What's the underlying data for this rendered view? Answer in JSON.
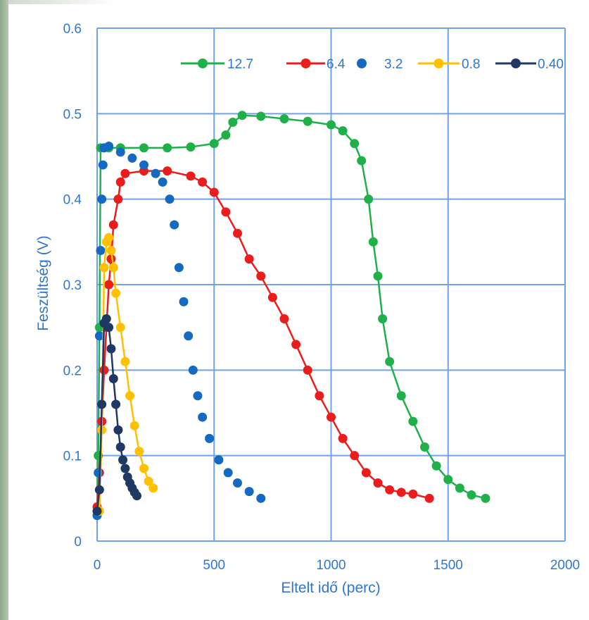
{
  "colors": {
    "grid": "#6fa3e8",
    "text": "#2e75d4"
  },
  "chart_data": {
    "type": "scatter",
    "title": "",
    "xlabel": "Eltelt idő (perc)",
    "ylabel": "Feszültség (V)",
    "xlim": [
      0,
      2000
    ],
    "ylim": [
      0,
      0.6
    ],
    "xticks": [
      0,
      500,
      1000,
      1500,
      2000
    ],
    "yticks": [
      0,
      0.1,
      0.2,
      0.3,
      0.4,
      0.5,
      0.6
    ],
    "xtick_labels": [
      "0",
      "500",
      "1000",
      "1500",
      "2000"
    ],
    "ytick_labels": [
      "0",
      "0.1",
      "0.2",
      "0.3",
      "0.4",
      "0.5",
      "0.6"
    ],
    "grid": true,
    "legend_position": "top-right",
    "series": [
      {
        "name": "12.7",
        "color": "#1fb04a",
        "line": true,
        "points": [
          [
            0,
            0.03
          ],
          [
            5,
            0.1
          ],
          [
            10,
            0.25
          ],
          [
            15,
            0.46
          ],
          [
            50,
            0.46
          ],
          [
            100,
            0.46
          ],
          [
            200,
            0.46
          ],
          [
            300,
            0.46
          ],
          [
            400,
            0.461
          ],
          [
            500,
            0.465
          ],
          [
            550,
            0.475
          ],
          [
            580,
            0.49
          ],
          [
            620,
            0.498
          ],
          [
            700,
            0.497
          ],
          [
            800,
            0.494
          ],
          [
            900,
            0.491
          ],
          [
            1000,
            0.487
          ],
          [
            1050,
            0.48
          ],
          [
            1100,
            0.465
          ],
          [
            1130,
            0.445
          ],
          [
            1160,
            0.4
          ],
          [
            1180,
            0.35
          ],
          [
            1200,
            0.31
          ],
          [
            1220,
            0.26
          ],
          [
            1250,
            0.21
          ],
          [
            1300,
            0.17
          ],
          [
            1350,
            0.14
          ],
          [
            1400,
            0.11
          ],
          [
            1450,
            0.088
          ],
          [
            1500,
            0.072
          ],
          [
            1550,
            0.062
          ],
          [
            1600,
            0.054
          ],
          [
            1660,
            0.05
          ]
        ]
      },
      {
        "name": "6.4",
        "color": "#ea1c1c",
        "line": true,
        "points": [
          [
            0,
            0.04
          ],
          [
            10,
            0.08
          ],
          [
            20,
            0.14
          ],
          [
            30,
            0.2
          ],
          [
            40,
            0.25
          ],
          [
            50,
            0.3
          ],
          [
            60,
            0.33
          ],
          [
            70,
            0.37
          ],
          [
            90,
            0.4
          ],
          [
            100,
            0.42
          ],
          [
            120,
            0.43
          ],
          [
            200,
            0.433
          ],
          [
            300,
            0.433
          ],
          [
            400,
            0.427
          ],
          [
            450,
            0.42
          ],
          [
            500,
            0.408
          ],
          [
            550,
            0.385
          ],
          [
            600,
            0.36
          ],
          [
            650,
            0.33
          ],
          [
            700,
            0.31
          ],
          [
            750,
            0.285
          ],
          [
            800,
            0.26
          ],
          [
            850,
            0.23
          ],
          [
            900,
            0.2
          ],
          [
            950,
            0.17
          ],
          [
            1000,
            0.145
          ],
          [
            1050,
            0.12
          ],
          [
            1100,
            0.1
          ],
          [
            1150,
            0.08
          ],
          [
            1200,
            0.068
          ],
          [
            1250,
            0.06
          ],
          [
            1300,
            0.057
          ],
          [
            1350,
            0.055
          ],
          [
            1420,
            0.05
          ]
        ]
      },
      {
        "name": "3.2",
        "color": "#1469c0",
        "line": false,
        "points": [
          [
            0,
            0.03
          ],
          [
            5,
            0.08
          ],
          [
            10,
            0.24
          ],
          [
            15,
            0.34
          ],
          [
            20,
            0.4
          ],
          [
            25,
            0.44
          ],
          [
            30,
            0.46
          ],
          [
            50,
            0.462
          ],
          [
            100,
            0.455
          ],
          [
            150,
            0.448
          ],
          [
            200,
            0.44
          ],
          [
            250,
            0.43
          ],
          [
            280,
            0.42
          ],
          [
            310,
            0.4
          ],
          [
            330,
            0.37
          ],
          [
            350,
            0.32
          ],
          [
            370,
            0.28
          ],
          [
            390,
            0.24
          ],
          [
            410,
            0.2
          ],
          [
            430,
            0.17
          ],
          [
            450,
            0.145
          ],
          [
            480,
            0.12
          ],
          [
            520,
            0.095
          ],
          [
            560,
            0.08
          ],
          [
            600,
            0.068
          ],
          [
            650,
            0.058
          ],
          [
            700,
            0.05
          ]
        ]
      },
      {
        "name": "0.8",
        "color": "#ffc000",
        "line": true,
        "points": [
          [
            0,
            0.035
          ],
          [
            10,
            0.035
          ],
          [
            20,
            0.13
          ],
          [
            30,
            0.32
          ],
          [
            40,
            0.35
          ],
          [
            50,
            0.355
          ],
          [
            60,
            0.34
          ],
          [
            70,
            0.32
          ],
          [
            80,
            0.29
          ],
          [
            100,
            0.25
          ],
          [
            120,
            0.21
          ],
          [
            140,
            0.17
          ],
          [
            160,
            0.135
          ],
          [
            180,
            0.105
          ],
          [
            200,
            0.085
          ],
          [
            220,
            0.07
          ],
          [
            240,
            0.062
          ]
        ]
      },
      {
        "name": "0.40",
        "color": "#1f3864",
        "line": true,
        "points": [
          [
            0,
            0.035
          ],
          [
            10,
            0.06
          ],
          [
            20,
            0.16
          ],
          [
            30,
            0.255
          ],
          [
            40,
            0.26
          ],
          [
            50,
            0.25
          ],
          [
            60,
            0.225
          ],
          [
            70,
            0.19
          ],
          [
            80,
            0.16
          ],
          [
            90,
            0.13
          ],
          [
            100,
            0.11
          ],
          [
            110,
            0.095
          ],
          [
            120,
            0.085
          ],
          [
            130,
            0.075
          ],
          [
            140,
            0.068
          ],
          [
            150,
            0.062
          ],
          [
            160,
            0.057
          ],
          [
            170,
            0.053
          ]
        ]
      }
    ]
  }
}
